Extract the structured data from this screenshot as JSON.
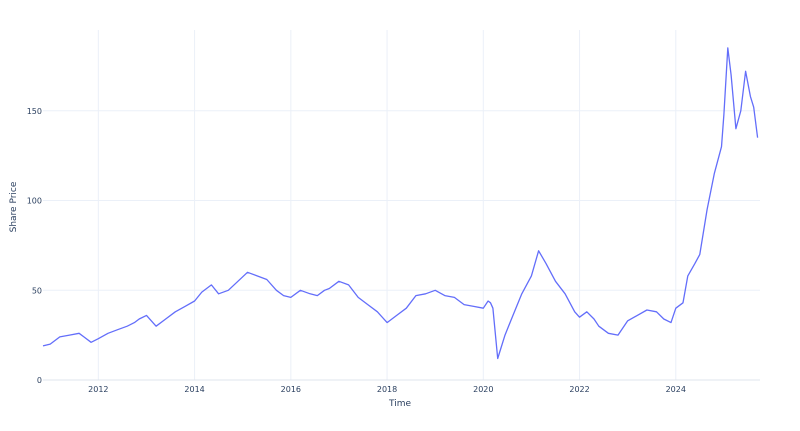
{
  "chart_data": {
    "type": "line",
    "title": "",
    "xlabel": "Time",
    "ylabel": "Share Price",
    "xlim": [
      2010.85,
      2025.75
    ],
    "ylim": [
      0,
      195
    ],
    "x_ticks": [
      2012,
      2014,
      2016,
      2018,
      2020,
      2022,
      2024
    ],
    "x_tick_labels": [
      "2012",
      "2014",
      "2016",
      "2018",
      "2020",
      "2022",
      "2024"
    ],
    "y_ticks": [
      0,
      50,
      100,
      150
    ],
    "y_tick_labels": [
      "0",
      "50",
      "100",
      "150"
    ],
    "grid": true,
    "legend": "none",
    "series": [
      {
        "color": "#636efa",
        "x": [
          2010.85,
          2011.0,
          2011.2,
          2011.4,
          2011.6,
          2011.7,
          2011.85,
          2012.0,
          2012.2,
          2012.4,
          2012.6,
          2012.75,
          2012.85,
          2013.0,
          2013.2,
          2013.4,
          2013.6,
          2013.8,
          2014.0,
          2014.15,
          2014.35,
          2014.5,
          2014.7,
          2014.9,
          2015.1,
          2015.3,
          2015.5,
          2015.7,
          2015.85,
          2016.0,
          2016.2,
          2016.4,
          2016.55,
          2016.7,
          2016.8,
          2017.0,
          2017.2,
          2017.4,
          2017.6,
          2017.8,
          2018.0,
          2018.2,
          2018.4,
          2018.6,
          2018.8,
          2019.0,
          2019.2,
          2019.4,
          2019.6,
          2019.8,
          2020.0,
          2020.1,
          2020.15,
          2020.2,
          2020.3,
          2020.45,
          2020.6,
          2020.8,
          2021.0,
          2021.15,
          2021.3,
          2021.5,
          2021.7,
          2021.9,
          2022.0,
          2022.15,
          2022.3,
          2022.4,
          2022.6,
          2022.8,
          2023.0,
          2023.2,
          2023.4,
          2023.6,
          2023.75,
          2023.9,
          2024.0,
          2024.15,
          2024.25,
          2024.4,
          2024.5,
          2024.65,
          2024.8,
          2024.95,
          2025.0,
          2025.08,
          2025.15,
          2025.25,
          2025.35,
          2025.45,
          2025.55,
          2025.62,
          2025.7
        ],
        "y": [
          19,
          20,
          24,
          25,
          26,
          24,
          21,
          23,
          26,
          28,
          30,
          32,
          34,
          36,
          30,
          34,
          38,
          41,
          44,
          49,
          53,
          48,
          50,
          55,
          60,
          58,
          56,
          50,
          47,
          46,
          50,
          48,
          47,
          50,
          51,
          55,
          53,
          46,
          42,
          38,
          32,
          36,
          40,
          47,
          48,
          50,
          47,
          46,
          42,
          41,
          40,
          44,
          43,
          40,
          12,
          25,
          35,
          48,
          58,
          72,
          65,
          55,
          48,
          38,
          35,
          38,
          34,
          30,
          26,
          25,
          33,
          36,
          39,
          38,
          34,
          32,
          40,
          43,
          58,
          65,
          70,
          95,
          115,
          130,
          148,
          185,
          170,
          140,
          150,
          172,
          158,
          152,
          135
        ]
      }
    ]
  }
}
